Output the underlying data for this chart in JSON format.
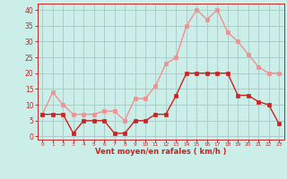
{
  "hours": [
    0,
    1,
    2,
    3,
    4,
    5,
    6,
    7,
    8,
    9,
    10,
    11,
    12,
    13,
    14,
    15,
    16,
    17,
    18,
    19,
    20,
    21,
    22,
    23
  ],
  "wind_avg": [
    7,
    7,
    7,
    1,
    5,
    5,
    5,
    1,
    1,
    5,
    5,
    7,
    7,
    13,
    20,
    20,
    20,
    20,
    20,
    13,
    13,
    11,
    10,
    4
  ],
  "wind_gust": [
    7,
    14,
    10,
    7,
    7,
    7,
    8,
    8,
    5,
    12,
    12,
    16,
    23,
    25,
    35,
    40,
    37,
    40,
    33,
    30,
    26,
    22,
    20,
    20
  ],
  "color_avg": "#cc2222",
  "color_gust": "#f09090",
  "bg_color": "#cceee8",
  "grid_color": "#aacccc",
  "xlabel": "Vent moyen/en rafales ( km/h )",
  "xlabel_color": "#cc2222",
  "tick_color": "#cc2222",
  "ylim": [
    -1,
    42
  ],
  "yticks": [
    0,
    5,
    10,
    15,
    20,
    25,
    30,
    35,
    40
  ],
  "xlim": [
    -0.5,
    23.5
  ],
  "marker": "s",
  "marker_size": 2.5,
  "line_width": 1.0
}
